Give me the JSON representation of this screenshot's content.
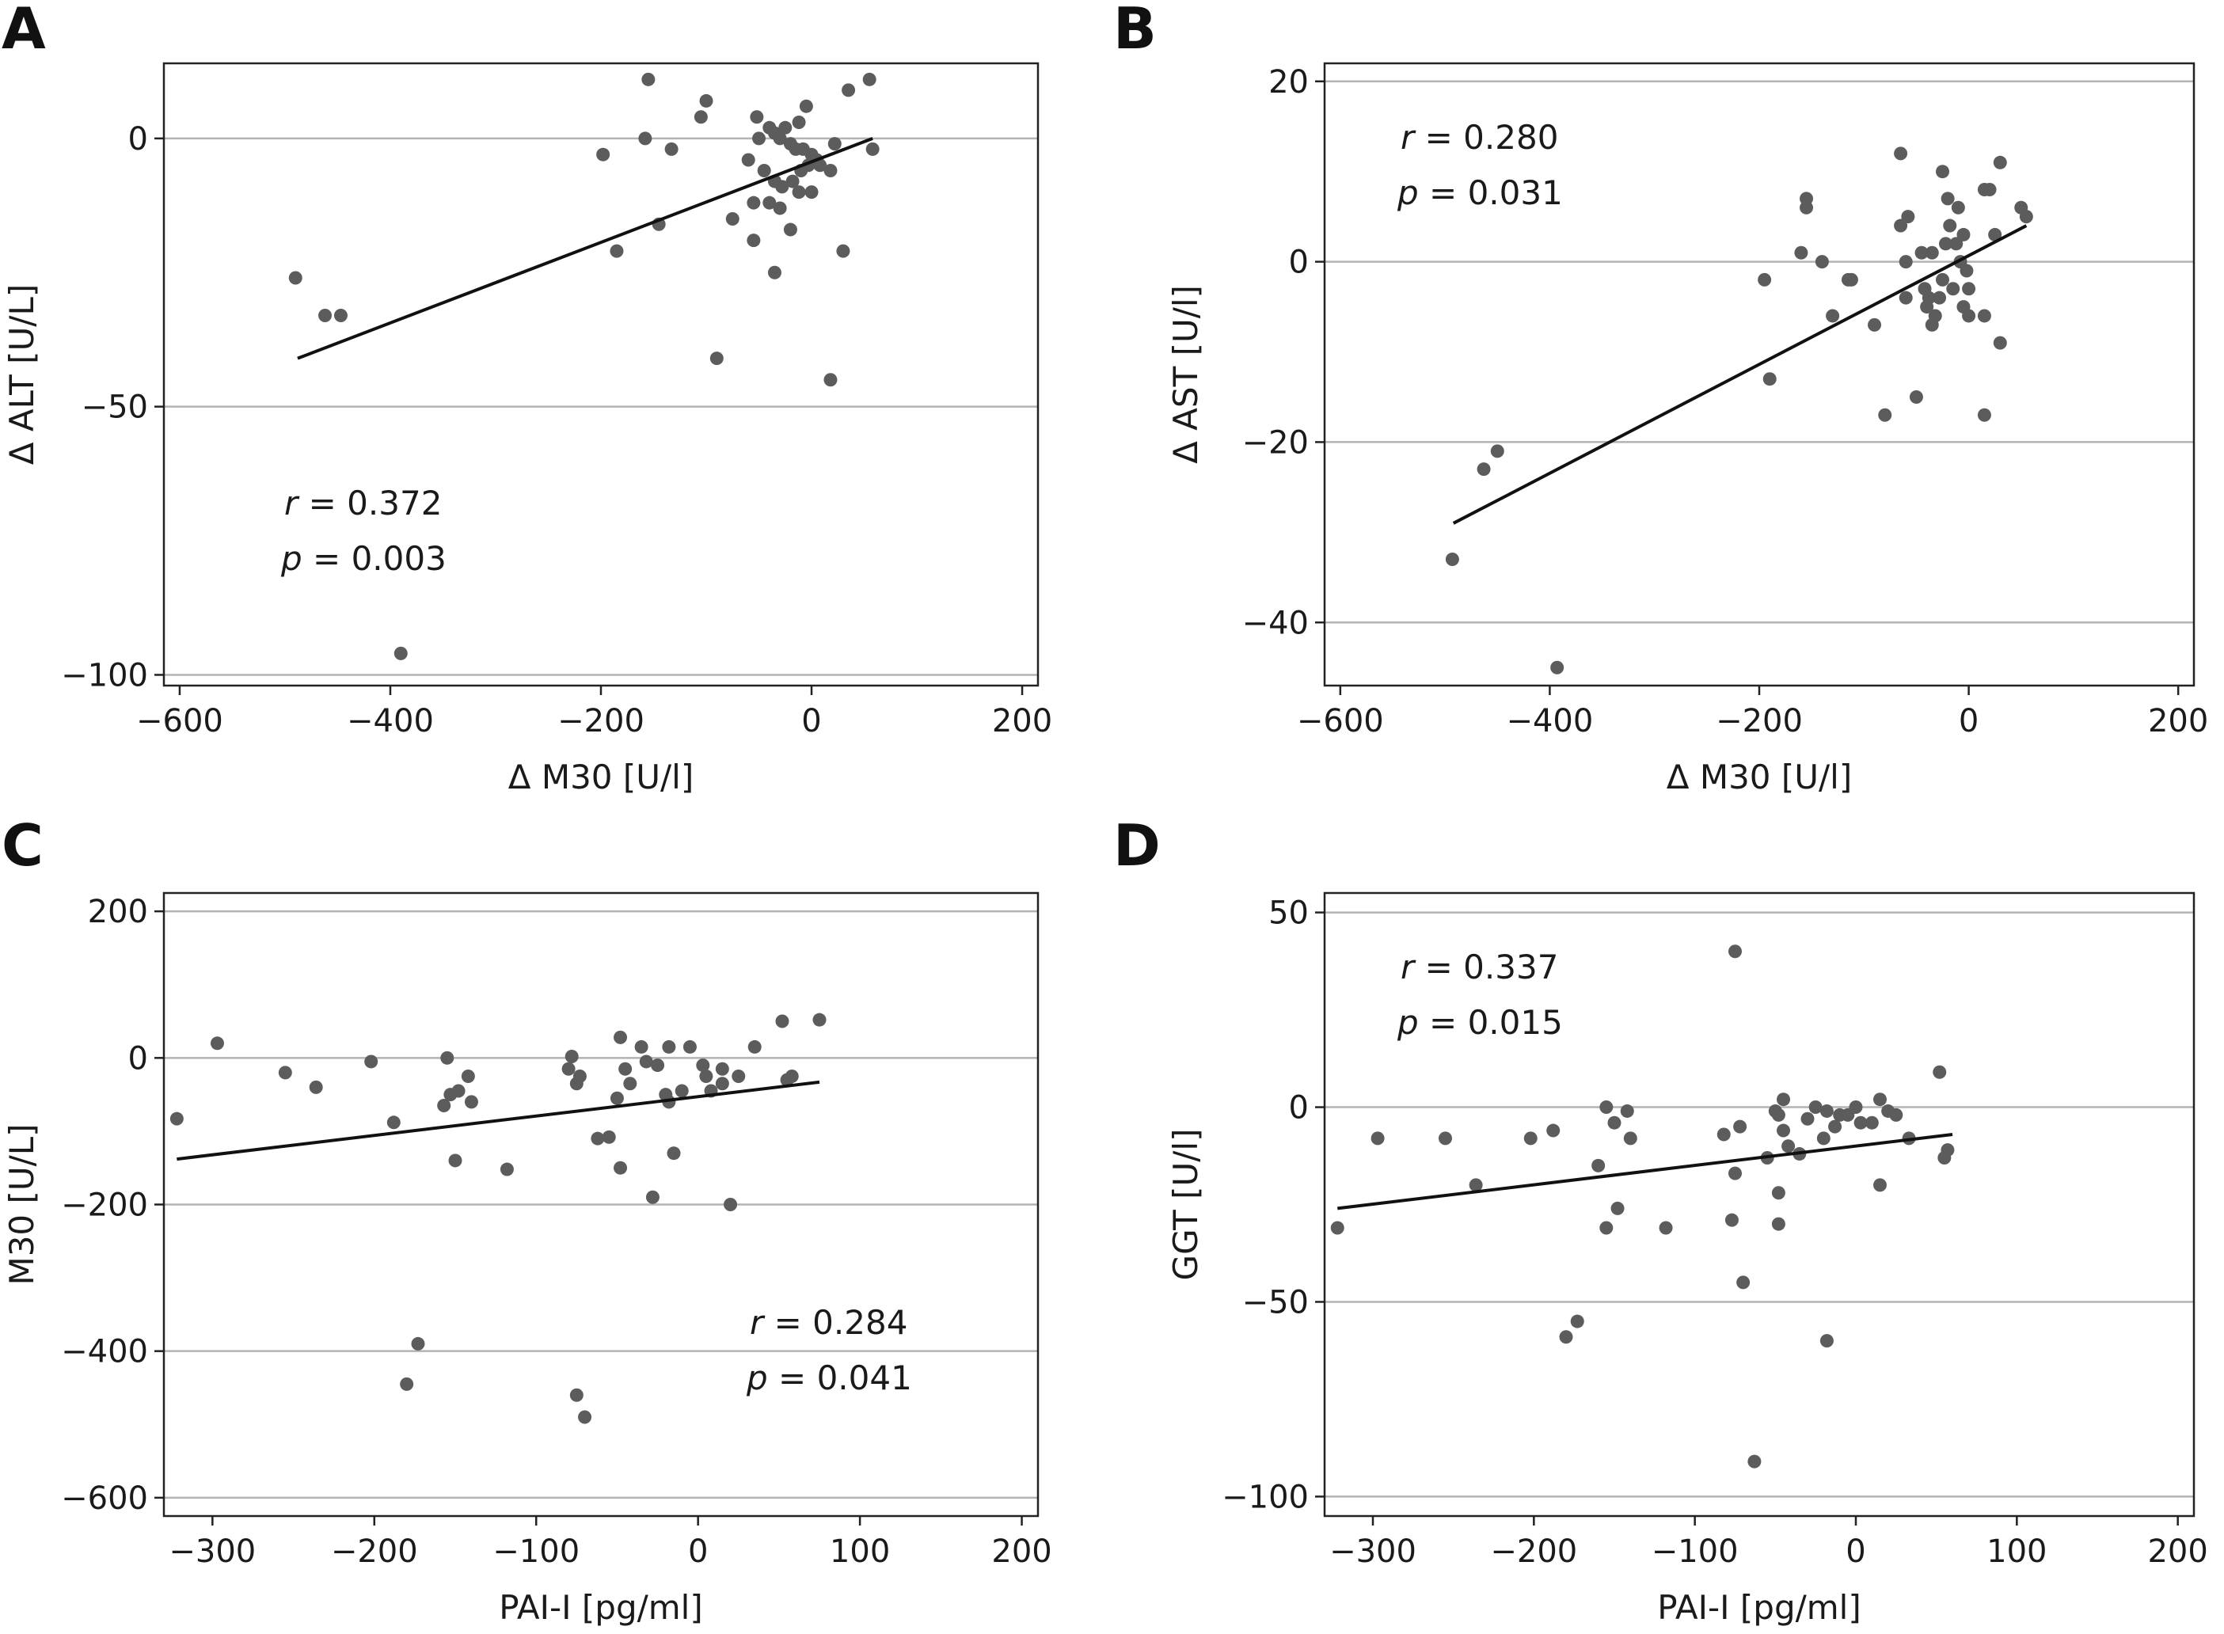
{
  "chart_data": [
    {
      "panel": "A",
      "type": "scatter",
      "xlabel": "Δ M30 [U/l]",
      "ylabel": "Δ ALT [U/L]",
      "xlim": [
        -615,
        215
      ],
      "ylim": [
        -102,
        14
      ],
      "xticks": [
        -600,
        -400,
        -200,
        0,
        200
      ],
      "yticks": [
        -100,
        -50,
        0
      ],
      "grid": "horizontal",
      "stat_r": "r = 0.372",
      "stat_p": "p = 0.003",
      "stat_position": "middle-left",
      "trendline": [
        [
          -488,
          -41
        ],
        [
          58,
          0
        ]
      ],
      "points": [
        [
          -155,
          11
        ],
        [
          -100,
          7
        ],
        [
          -105,
          4
        ],
        [
          35,
          9
        ],
        [
          55,
          11
        ],
        [
          -198,
          -3
        ],
        [
          -158,
          0
        ],
        [
          -133,
          -2
        ],
        [
          -52,
          4
        ],
        [
          -40,
          2
        ],
        [
          -35,
          1
        ],
        [
          -25,
          2
        ],
        [
          -12,
          3
        ],
        [
          -5,
          6
        ],
        [
          -50,
          0
        ],
        [
          -30,
          0
        ],
        [
          -20,
          -1
        ],
        [
          -15,
          -2
        ],
        [
          -8,
          -2
        ],
        [
          0,
          -3
        ],
        [
          5,
          -4
        ],
        [
          -60,
          -4
        ],
        [
          -45,
          -6
        ],
        [
          -35,
          -8
        ],
        [
          -28,
          -9
        ],
        [
          -18,
          -8
        ],
        [
          -10,
          -6
        ],
        [
          -3,
          -5
        ],
        [
          8,
          -5
        ],
        [
          18,
          -6
        ],
        [
          22,
          -1
        ],
        [
          58,
          -2
        ],
        [
          -55,
          -12
        ],
        [
          -40,
          -12
        ],
        [
          -30,
          -13
        ],
        [
          -20,
          -17
        ],
        [
          -12,
          -10
        ],
        [
          0,
          -10
        ],
        [
          -75,
          -15
        ],
        [
          -145,
          -16
        ],
        [
          -185,
          -21
        ],
        [
          -55,
          -19
        ],
        [
          -35,
          -25
        ],
        [
          30,
          -21
        ],
        [
          -90,
          -41
        ],
        [
          18,
          -45
        ],
        [
          -490,
          -26
        ],
        [
          -462,
          -33
        ],
        [
          -447,
          -33
        ],
        [
          -390,
          -96
        ]
      ]
    },
    {
      "panel": "B",
      "type": "scatter",
      "xlabel": "Δ M30 [U/l]",
      "ylabel": "Δ AST [U/l]",
      "xlim": [
        -615,
        215
      ],
      "ylim": [
        -47,
        22
      ],
      "xticks": [
        -600,
        -400,
        -200,
        0,
        200
      ],
      "yticks": [
        -40,
        -20,
        0,
        20
      ],
      "grid": "horizontal",
      "stat_r": "r = 0.280",
      "stat_p": "p = 0.031",
      "stat_position": "top-left",
      "trendline": [
        [
          -492,
          -29
        ],
        [
          55,
          4
        ]
      ],
      "points": [
        [
          -65,
          12
        ],
        [
          -25,
          10
        ],
        [
          30,
          11
        ],
        [
          -155,
          7
        ],
        [
          -155,
          6
        ],
        [
          -20,
          7
        ],
        [
          -10,
          6
        ],
        [
          15,
          8
        ],
        [
          20,
          8
        ],
        [
          50,
          6
        ],
        [
          55,
          5
        ],
        [
          -58,
          5
        ],
        [
          -65,
          4
        ],
        [
          -18,
          4
        ],
        [
          -5,
          3
        ],
        [
          25,
          3
        ],
        [
          -195,
          -2
        ],
        [
          -160,
          1
        ],
        [
          -140,
          0
        ],
        [
          -115,
          -2
        ],
        [
          -112,
          -2
        ],
        [
          -60,
          0
        ],
        [
          -45,
          1
        ],
        [
          -35,
          1
        ],
        [
          -22,
          2
        ],
        [
          -12,
          2
        ],
        [
          -8,
          0
        ],
        [
          -2,
          -1
        ],
        [
          -25,
          -2
        ],
        [
          -15,
          -3
        ],
        [
          0,
          -3
        ],
        [
          -42,
          -3
        ],
        [
          -38,
          -4
        ],
        [
          -28,
          -4
        ],
        [
          -40,
          -5
        ],
        [
          -32,
          -6
        ],
        [
          -5,
          -5
        ],
        [
          0,
          -6
        ],
        [
          -60,
          -4
        ],
        [
          15,
          -6
        ],
        [
          -130,
          -6
        ],
        [
          -90,
          -7
        ],
        [
          -35,
          -7
        ],
        [
          30,
          -9
        ],
        [
          -190,
          -13
        ],
        [
          -50,
          -15
        ],
        [
          -80,
          -17
        ],
        [
          15,
          -17
        ],
        [
          -450,
          -21
        ],
        [
          -463,
          -23
        ],
        [
          -493,
          -33
        ],
        [
          -393,
          -45
        ]
      ]
    },
    {
      "panel": "C",
      "type": "scatter",
      "xlabel": "PAI-I [pg/ml]",
      "ylabel": "M30 [U/L]",
      "xlim": [
        -330,
        210
      ],
      "ylim": [
        -625,
        225
      ],
      "xticks": [
        -300,
        -200,
        -100,
        0,
        100,
        200
      ],
      "yticks": [
        -600,
        -400,
        -200,
        0,
        200
      ],
      "grid": "horizontal",
      "stat_r": "r = 0.284",
      "stat_p": "p = 0.041",
      "stat_position": "lower-right",
      "trendline": [
        [
          -322,
          -138
        ],
        [
          75,
          -33
        ]
      ],
      "points": [
        [
          -322,
          -83
        ],
        [
          -297,
          20
        ],
        [
          -255,
          -20
        ],
        [
          -236,
          -40
        ],
        [
          -202,
          -5
        ],
        [
          -188,
          -88
        ],
        [
          -157,
          -65
        ],
        [
          -153,
          -50
        ],
        [
          -155,
          0
        ],
        [
          -148,
          -45
        ],
        [
          -142,
          -25
        ],
        [
          -140,
          -60
        ],
        [
          -150,
          -140
        ],
        [
          -118,
          -152
        ],
        [
          -80,
          -15
        ],
        [
          -78,
          2
        ],
        [
          -75,
          -35
        ],
        [
          -73,
          -25
        ],
        [
          -62,
          -110
        ],
        [
          -55,
          -108
        ],
        [
          -50,
          -55
        ],
        [
          -48,
          -150
        ],
        [
          -45,
          -15
        ],
        [
          -42,
          -35
        ],
        [
          -35,
          15
        ],
        [
          -32,
          -5
        ],
        [
          -28,
          -190
        ],
        [
          -25,
          -10
        ],
        [
          -20,
          -50
        ],
        [
          -18,
          15
        ],
        [
          -18,
          -60
        ],
        [
          -15,
          -130
        ],
        [
          -10,
          -45
        ],
        [
          -5,
          15
        ],
        [
          3,
          -10
        ],
        [
          5,
          -25
        ],
        [
          8,
          -45
        ],
        [
          15,
          -15
        ],
        [
          15,
          -35
        ],
        [
          20,
          -200
        ],
        [
          25,
          -25
        ],
        [
          35,
          15
        ],
        [
          52,
          50
        ],
        [
          55,
          -30
        ],
        [
          58,
          -25
        ],
        [
          75,
          52
        ],
        [
          -48,
          28
        ],
        [
          -180,
          -445
        ],
        [
          -173,
          -390
        ],
        [
          -75,
          -460
        ],
        [
          -70,
          -490
        ]
      ]
    },
    {
      "panel": "D",
      "type": "scatter",
      "xlabel": "PAI-I [pg/ml]",
      "ylabel": "GGT [U/l]",
      "xlim": [
        -330,
        210
      ],
      "ylim": [
        -105,
        55
      ],
      "xticks": [
        -300,
        -200,
        -100,
        0,
        100,
        200
      ],
      "yticks": [
        -100,
        -50,
        0,
        50
      ],
      "grid": "horizontal",
      "stat_r": "r = 0.337",
      "stat_p": "p = 0.015",
      "stat_position": "top-left",
      "trendline": [
        [
          -322,
          -26
        ],
        [
          60,
          -7
        ]
      ],
      "points": [
        [
          -322,
          -31
        ],
        [
          -297,
          -8
        ],
        [
          -255,
          -8
        ],
        [
          -236,
          -20
        ],
        [
          -202,
          -8
        ],
        [
          -188,
          -6
        ],
        [
          -160,
          -15
        ],
        [
          -155,
          0
        ],
        [
          -155,
          -31
        ],
        [
          -150,
          -4
        ],
        [
          -148,
          -26
        ],
        [
          -142,
          -1
        ],
        [
          -140,
          -8
        ],
        [
          -118,
          -31
        ],
        [
          -82,
          -7
        ],
        [
          -72,
          -5
        ],
        [
          -75,
          -17
        ],
        [
          -77,
          -29
        ],
        [
          -70,
          -45
        ],
        [
          -63,
          -91
        ],
        [
          -55,
          -13
        ],
        [
          -48,
          -2
        ],
        [
          -45,
          2
        ],
        [
          -42,
          -10
        ],
        [
          -45,
          -6
        ],
        [
          -35,
          -12
        ],
        [
          -30,
          -3
        ],
        [
          -25,
          0
        ],
        [
          -20,
          -8
        ],
        [
          -18,
          -1
        ],
        [
          -13,
          -5
        ],
        [
          -10,
          -2
        ],
        [
          -5,
          -2
        ],
        [
          0,
          0
        ],
        [
          3,
          -4
        ],
        [
          10,
          -4
        ],
        [
          15,
          2
        ],
        [
          15,
          -20
        ],
        [
          20,
          -1
        ],
        [
          25,
          -2
        ],
        [
          33,
          -8
        ],
        [
          52,
          9
        ],
        [
          55,
          -13
        ],
        [
          57,
          -11
        ],
        [
          -180,
          -59
        ],
        [
          -173,
          -55
        ],
        [
          -18,
          -60
        ],
        [
          -75,
          40
        ],
        [
          -48,
          -22
        ],
        [
          -48,
          -30
        ],
        [
          -50,
          -1
        ]
      ]
    }
  ],
  "style": {
    "point_color": "#5c5c5c",
    "grid_color": "#b3b3b3",
    "axis_color": "#222222",
    "line_color": "#111111"
  }
}
